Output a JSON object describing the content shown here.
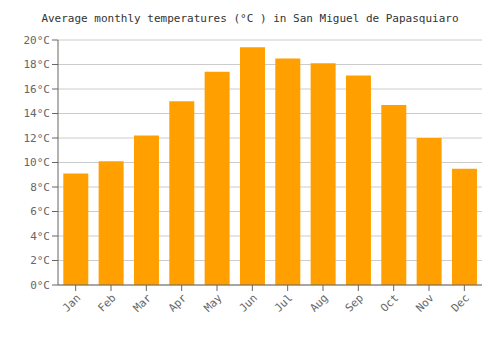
{
  "chart_data": {
    "type": "bar",
    "title": "Average monthly temperatures (°C ) in San Miguel de Papasquiaro",
    "categories": [
      "Jan",
      "Feb",
      "Mar",
      "Apr",
      "May",
      "Jun",
      "Jul",
      "Aug",
      "Sep",
      "Oct",
      "Nov",
      "Dec"
    ],
    "values": [
      9.1,
      10.1,
      12.2,
      15.0,
      17.4,
      19.4,
      18.5,
      18.1,
      17.1,
      14.7,
      12.0,
      9.5
    ],
    "color": "#FFA000",
    "ylim": [
      0,
      20
    ],
    "yticks": [
      {
        "value": 0,
        "label": "0°C"
      },
      {
        "value": 2,
        "label": "2°C"
      },
      {
        "value": 4,
        "label": "4°C"
      },
      {
        "value": 6,
        "label": "6°C"
      },
      {
        "value": 8,
        "label": "8°C"
      },
      {
        "value": 10,
        "label": "10°C"
      },
      {
        "value": 12,
        "label": "12°C"
      },
      {
        "value": 14,
        "label": "14°C"
      },
      {
        "value": 16,
        "label": "16°C"
      },
      {
        "value": 18,
        "label": "18°C"
      },
      {
        "value": 20,
        "label": "20°C"
      }
    ],
    "grid": true
  }
}
